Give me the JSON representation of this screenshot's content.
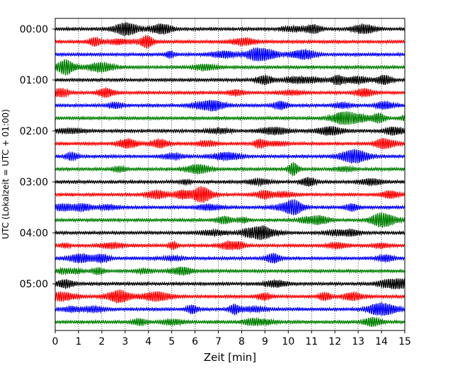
{
  "chart_data": {
    "type": "line",
    "title": "",
    "xlabel": "Zeit  [min]",
    "ylabel": "UTC (Lokalzeit = UTC + 01:00)",
    "xlim": [
      0,
      15
    ],
    "x_ticks": [
      "0",
      "1",
      "2",
      "3",
      "4",
      "5",
      "6",
      "7",
      "8",
      "9",
      "10",
      "11",
      "12",
      "13",
      "14",
      "15"
    ],
    "y_ticks": [
      "00:00",
      "01:00",
      "02:00",
      "03:00",
      "04:00",
      "05:00"
    ],
    "grid": "vertical dotted at each minute",
    "trace_interval_minutes": 15,
    "trace_start_times": [
      "00:00",
      "00:15",
      "00:30",
      "00:45",
      "01:00",
      "01:15",
      "01:30",
      "01:45",
      "02:00",
      "02:15",
      "02:30",
      "02:45",
      "03:00",
      "03:15",
      "03:30",
      "03:45",
      "04:00",
      "04:15",
      "04:30",
      "04:45",
      "05:00",
      "05:15",
      "05:30",
      "05:45"
    ],
    "colors": [
      "#000000",
      "#ff0000",
      "#0000ff",
      "#008000"
    ]
  }
}
